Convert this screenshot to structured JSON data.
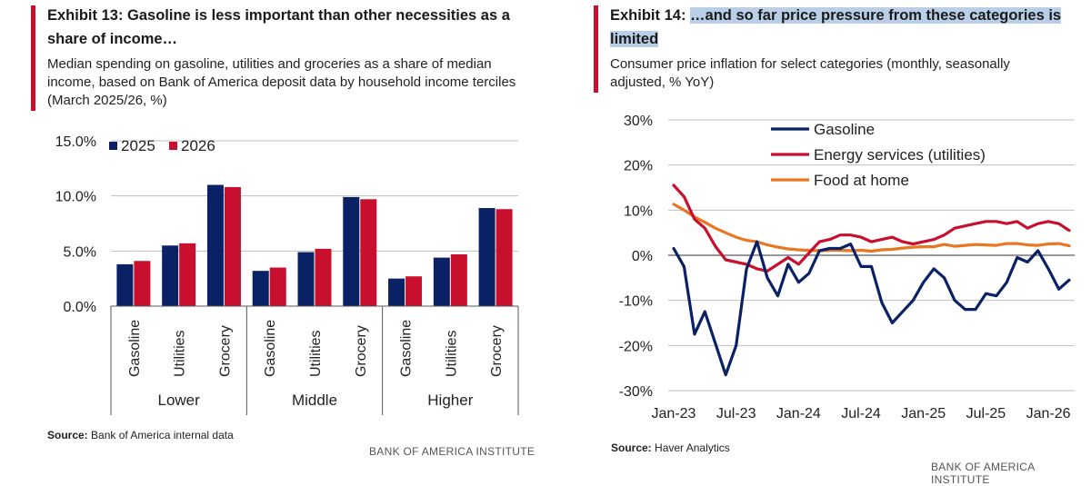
{
  "left": {
    "title": "Exhibit 13: Gasoline is less important than other necessities as a share of income…",
    "subtitle": "Median spending on gasoline, utilities and groceries as a share of median income, based on Bank of America deposit data by household income terciles (March 2025/26, %)",
    "source_label": "Source:",
    "source_text": "Bank of America internal data",
    "footer": "BANK OF AMERICA INSTITUTE"
  },
  "right": {
    "title_prefix": "Exhibit 14: ",
    "title_highlight": "…and so far price pressure from these categories is limited",
    "subtitle": "Consumer price inflation for select categories (monthly, seasonally adjusted, % YoY)",
    "source_label": "Source:",
    "source_text": "Haver Analytics",
    "footer": "BANK OF AMERICA INSTITUTE"
  },
  "colors": {
    "accent": "#c8102e",
    "navy": "#0b2166",
    "red": "#c8102e",
    "orange": "#e87722",
    "grid": "#bfbfbf",
    "highlight": "#b9cfe8"
  },
  "chart_data": [
    {
      "type": "bar",
      "title": "",
      "groups": [
        "Lower",
        "Middle",
        "Higher"
      ],
      "categories": [
        "Gasoline",
        "Utilities",
        "Grocery",
        "Gasoline",
        "Utilities",
        "Grocery",
        "Gasoline",
        "Utilities",
        "Grocery"
      ],
      "series": [
        {
          "name": "2025",
          "color": "#0b2166",
          "values": [
            3.8,
            5.5,
            11.0,
            3.2,
            4.9,
            9.9,
            2.5,
            4.4,
            8.9
          ]
        },
        {
          "name": "2026",
          "color": "#c8102e",
          "values": [
            4.1,
            5.7,
            10.8,
            3.5,
            5.2,
            9.7,
            2.7,
            4.7,
            8.8
          ]
        }
      ],
      "ylim": [
        0,
        15
      ],
      "yticks": [
        "0.0%",
        "5.0%",
        "10.0%",
        "15.0%"
      ],
      "ytick_values": [
        0,
        5,
        10,
        15
      ],
      "grid": true,
      "legend": "top-left"
    },
    {
      "type": "line",
      "title": "",
      "x": [
        "2023-01",
        "2023-02",
        "2023-03",
        "2023-04",
        "2023-05",
        "2023-06",
        "2023-07",
        "2023-08",
        "2023-09",
        "2023-10",
        "2023-11",
        "2023-12",
        "2024-01",
        "2024-02",
        "2024-03",
        "2024-04",
        "2024-05",
        "2024-06",
        "2024-07",
        "2024-08",
        "2024-09",
        "2024-10",
        "2024-11",
        "2024-12",
        "2025-01",
        "2025-02",
        "2025-03",
        "2025-04",
        "2025-05",
        "2025-06",
        "2025-07",
        "2025-08",
        "2025-09",
        "2025-10",
        "2025-11",
        "2025-12",
        "2026-01",
        "2026-02",
        "2026-03"
      ],
      "xticks": [
        "Jan-23",
        "Jul-23",
        "Jan-24",
        "Jul-24",
        "Jan-25",
        "Jul-25",
        "Jan-26"
      ],
      "xtick_positions": [
        "2023-01",
        "2023-07",
        "2024-01",
        "2024-07",
        "2025-01",
        "2025-07",
        "2026-01"
      ],
      "series": [
        {
          "name": "Gasoline",
          "color": "#0b2166",
          "values": [
            1.5,
            -2.5,
            -17.5,
            -12.5,
            -19.5,
            -26.5,
            -20.0,
            -3.0,
            3.0,
            -5.0,
            -9.0,
            -2.0,
            -6.0,
            -4.0,
            1.0,
            1.5,
            1.5,
            2.5,
            -2.5,
            -2.5,
            -10.5,
            -15.0,
            -12.5,
            -10.0,
            -6.0,
            -3.0,
            -5.0,
            -10.0,
            -12.0,
            -12.0,
            -8.5,
            -9.0,
            -6.0,
            -0.5,
            -1.5,
            1.0,
            -3.0,
            -7.5,
            -5.5
          ]
        },
        {
          "name": "Energy services (utilities)",
          "color": "#c8102e",
          "values": [
            15.5,
            13.0,
            8.0,
            6.0,
            2.0,
            -1.0,
            -1.5,
            -2.0,
            -3.0,
            -3.5,
            -2.0,
            -0.5,
            -2.0,
            0.5,
            3.0,
            3.5,
            4.5,
            4.5,
            4.0,
            3.0,
            3.5,
            4.0,
            3.0,
            2.5,
            3.0,
            3.5,
            4.5,
            6.0,
            6.5,
            7.0,
            7.5,
            7.5,
            7.0,
            7.5,
            6.0,
            7.0,
            7.5,
            7.0,
            5.5
          ]
        },
        {
          "name": "Food at home",
          "color": "#e87722",
          "values": [
            11.3,
            10.0,
            8.5,
            7.3,
            6.0,
            5.0,
            4.0,
            3.3,
            3.0,
            2.3,
            1.8,
            1.4,
            1.2,
            1.1,
            1.0,
            1.1,
            1.1,
            1.0,
            1.1,
            0.9,
            1.2,
            1.3,
            1.6,
            1.8,
            1.9,
            1.9,
            2.4,
            2.0,
            2.2,
            2.4,
            2.3,
            2.2,
            2.6,
            2.6,
            2.3,
            2.2,
            2.5,
            2.6,
            2.1
          ]
        }
      ],
      "ylim": [
        -30,
        30
      ],
      "yticks": [
        "-30%",
        "-20%",
        "-10%",
        "0%",
        "10%",
        "20%",
        "30%"
      ],
      "ytick_values": [
        -30,
        -20,
        -10,
        0,
        10,
        20,
        30
      ],
      "grid": true,
      "legend": "top"
    }
  ]
}
